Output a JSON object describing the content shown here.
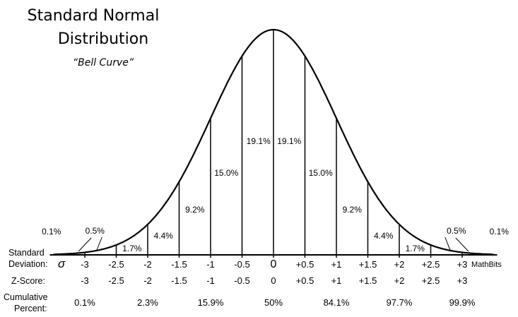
{
  "chart_data": {
    "type": "area",
    "title_line1": "Standard Normal",
    "title_line2": "Distribution",
    "subtitle": "“Bell Curve”",
    "xlim": [
      -3.5,
      3.5
    ],
    "boundaries": [
      -3,
      -2.5,
      -2,
      -1.5,
      -1,
      -0.5,
      0,
      0.5,
      1,
      1.5,
      2,
      2.5,
      3
    ],
    "region_percents": [
      {
        "from": -3.5,
        "to": -3,
        "label": "0.1%"
      },
      {
        "from": -3,
        "to": -2.5,
        "label": "0.5%"
      },
      {
        "from": -2.5,
        "to": -2,
        "label": "1.7%"
      },
      {
        "from": -2,
        "to": -1.5,
        "label": "4.4%"
      },
      {
        "from": -1.5,
        "to": -1,
        "label": "9.2%"
      },
      {
        "from": -1,
        "to": -0.5,
        "label": "15.0%"
      },
      {
        "from": -0.5,
        "to": 0,
        "label": "19.1%"
      },
      {
        "from": 0,
        "to": 0.5,
        "label": "19.1%"
      },
      {
        "from": 0.5,
        "to": 1,
        "label": "15.0%"
      },
      {
        "from": 1,
        "to": 1.5,
        "label": "9.2%"
      },
      {
        "from": 1.5,
        "to": 2,
        "label": "4.4%"
      },
      {
        "from": 2,
        "to": 2.5,
        "label": "1.7%"
      },
      {
        "from": 2.5,
        "to": 3,
        "label": "0.5%"
      },
      {
        "from": 3,
        "to": 3.5,
        "label": "0.1%"
      }
    ],
    "rows": {
      "sd_label_1": "Standard",
      "sd_label_2": "Deviation:",
      "sigma": "σ",
      "sd_values": [
        "-3",
        "-2.5",
        "-2",
        "-1.5",
        "-1",
        "-0.5",
        "0",
        "+0.5",
        "+1",
        "+1.5",
        "+2",
        "+2.5",
        "+3"
      ],
      "z_label": "Z-Score:",
      "z_values": [
        "-3",
        "-2.5",
        "-2",
        "-1.5",
        "-1",
        "-0.5",
        "0",
        "+0.5",
        "+1",
        "+1.5",
        "+2",
        "+2.5",
        "+3"
      ],
      "cum_label_1": "Cumulative",
      "cum_label_2": "Percent:",
      "cumulative": [
        {
          "at": -3,
          "label": "0.1%"
        },
        {
          "at": -2,
          "label": "2.3%"
        },
        {
          "at": -1,
          "label": "15.9%"
        },
        {
          "at": 0,
          "label": "50%"
        },
        {
          "at": 1,
          "label": "84.1%"
        },
        {
          "at": 2,
          "label": "97.7%"
        },
        {
          "at": 3,
          "label": "99.9%"
        }
      ]
    },
    "watermark": "MathBits"
  }
}
